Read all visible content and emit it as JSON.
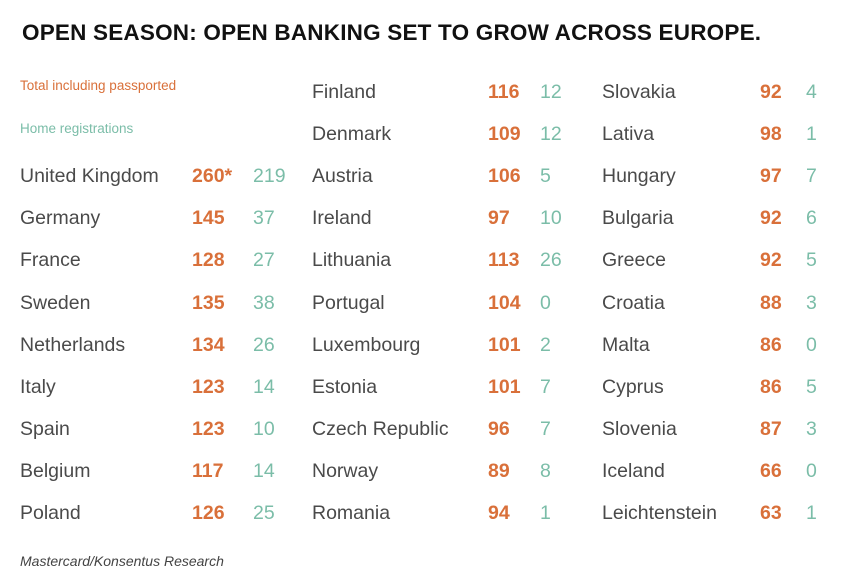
{
  "title": "OPEN SEASON: OPEN BANKING SET TO GROW ACROSS EUROPE.",
  "colors": {
    "total": "#d9703a",
    "home": "#7bbda8",
    "text": "#4a4a4a"
  },
  "chart_data": {
    "type": "table",
    "legend": {
      "total": "Total including passported",
      "home": "Home registrations"
    },
    "columns": [
      [
        {
          "country": "United Kingdom",
          "total": "260*",
          "home": "219"
        },
        {
          "country": "Germany",
          "total": "145",
          "home": "37"
        },
        {
          "country": "France",
          "total": "128",
          "home": "27"
        },
        {
          "country": "Sweden",
          "total": "135",
          "home": "38"
        },
        {
          "country": "Netherlands",
          "total": "134",
          "home": "26"
        },
        {
          "country": "Italy",
          "total": "123",
          "home": "14"
        },
        {
          "country": "Spain",
          "total": "123",
          "home": "10"
        },
        {
          "country": "Belgium",
          "total": "117",
          "home": "14"
        },
        {
          "country": "Poland",
          "total": "126",
          "home": "25"
        }
      ],
      [
        {
          "country": "Finland",
          "total": "116",
          "home": "12"
        },
        {
          "country": "Denmark",
          "total": "109",
          "home": "12"
        },
        {
          "country": "Austria",
          "total": "106",
          "home": "5"
        },
        {
          "country": "Ireland",
          "total": "97",
          "home": "10"
        },
        {
          "country": "Lithuania",
          "total": "113",
          "home": "26"
        },
        {
          "country": "Portugal",
          "total": "104",
          "home": "0"
        },
        {
          "country": "Luxembourg",
          "total": "101",
          "home": "2"
        },
        {
          "country": "Estonia",
          "total": "101",
          "home": "7"
        },
        {
          "country": "Czech Republic",
          "total": "96",
          "home": "7"
        },
        {
          "country": "Norway",
          "total": "89",
          "home": "8"
        },
        {
          "country": "Romania",
          "total": "94",
          "home": "1"
        }
      ],
      [
        {
          "country": "Slovakia",
          "total": "92",
          "home": "4"
        },
        {
          "country": "Lativa",
          "total": "98",
          "home": "1"
        },
        {
          "country": "Hungary",
          "total": "97",
          "home": "7"
        },
        {
          "country": "Bulgaria",
          "total": "92",
          "home": "6"
        },
        {
          "country": "Greece",
          "total": "92",
          "home": "5"
        },
        {
          "country": "Croatia",
          "total": "88",
          "home": "3"
        },
        {
          "country": "Malta",
          "total": "86",
          "home": "0"
        },
        {
          "country": "Cyprus",
          "total": "86",
          "home": "5"
        },
        {
          "country": "Slovenia",
          "total": "87",
          "home": "3"
        },
        {
          "country": "Iceland",
          "total": "66",
          "home": "0"
        },
        {
          "country": "Leichtenstein",
          "total": "63",
          "home": "1"
        }
      ]
    ]
  },
  "source": "Mastercard/Konsentus Research"
}
